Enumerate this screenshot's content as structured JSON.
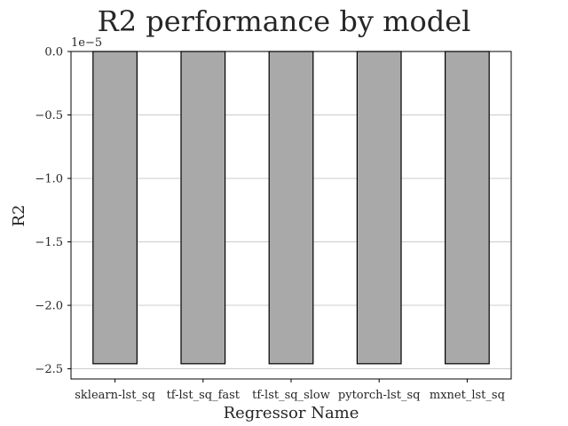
{
  "chart_data": {
    "type": "bar",
    "title": "R2 performance by model",
    "xlabel": "Regressor Name",
    "ylabel": "R2",
    "offset_text": "1e−5",
    "categories": [
      "sklearn-lst_sq",
      "tf-lst_sq_fast",
      "tf-lst_sq_slow",
      "pytorch-lst_sq",
      "mxnet_lst_sq"
    ],
    "values": [
      -2.46e-05,
      -2.46e-05,
      -2.46e-05,
      -2.46e-05,
      -2.46e-05
    ],
    "ylim": [
      -2.58e-05,
      0
    ],
    "yticks": [
      0,
      -5e-06,
      -1e-05,
      -1.5e-05,
      -2e-05,
      -2.5e-05
    ],
    "ytick_labels": [
      "0.0",
      "−0.5",
      "−1.0",
      "−1.5",
      "−2.0",
      "−2.5"
    ],
    "grid": "y",
    "bar_color": "#a9a9a9",
    "edge_color": "#000000"
  }
}
